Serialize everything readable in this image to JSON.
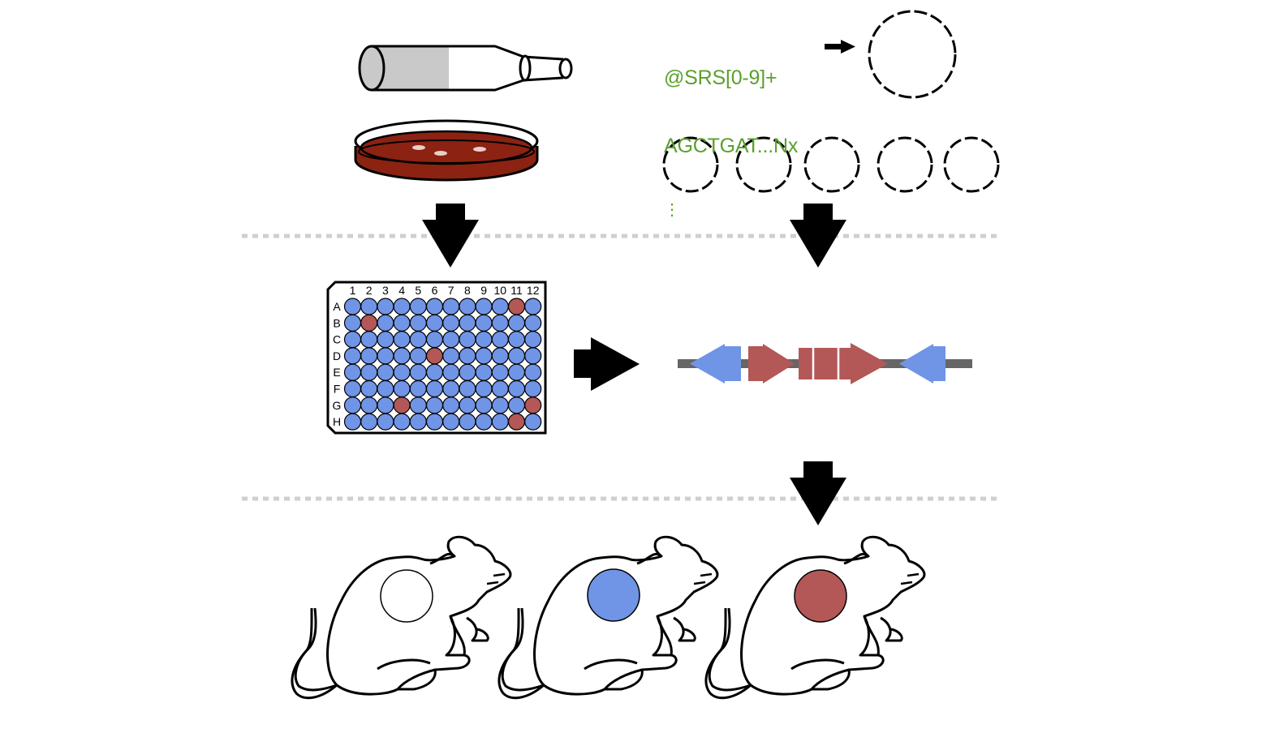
{
  "colors": {
    "well_default": "#7094e6",
    "well_hit": "#b35757",
    "agar": "#8b2212",
    "sequence_text": "#5aa02c",
    "gene_blue": "#7094e6",
    "gene_red": "#b35757",
    "divider": "#cfcfcf",
    "mouse_spot_colors": [
      "#ffffff",
      "#7094e6",
      "#b35757"
    ]
  },
  "sequence": {
    "line1": "@SRS[0-9]+",
    "line2": "AGCTGAT...Nx",
    "line3": "⋮"
  },
  "plate": {
    "columns": [
      "1",
      "2",
      "3",
      "4",
      "5",
      "6",
      "7",
      "8",
      "9",
      "10",
      "11",
      "12"
    ],
    "rows": [
      "A",
      "B",
      "C",
      "D",
      "E",
      "F",
      "G",
      "H"
    ],
    "hit_wells": [
      "A11",
      "B2",
      "D6",
      "G4",
      "G12",
      "H11"
    ]
  },
  "mice": [
    {
      "id": "mouse-1",
      "spot": "white"
    },
    {
      "id": "mouse-2",
      "spot": "blue"
    },
    {
      "id": "mouse-3",
      "spot": "red"
    }
  ],
  "icons": [
    "culture-tube-icon",
    "petri-dish-icon",
    "plasmid-icon",
    "arrow-icon",
    "mouse-icon",
    "gene-cluster-icon",
    "well-plate-icon"
  ]
}
